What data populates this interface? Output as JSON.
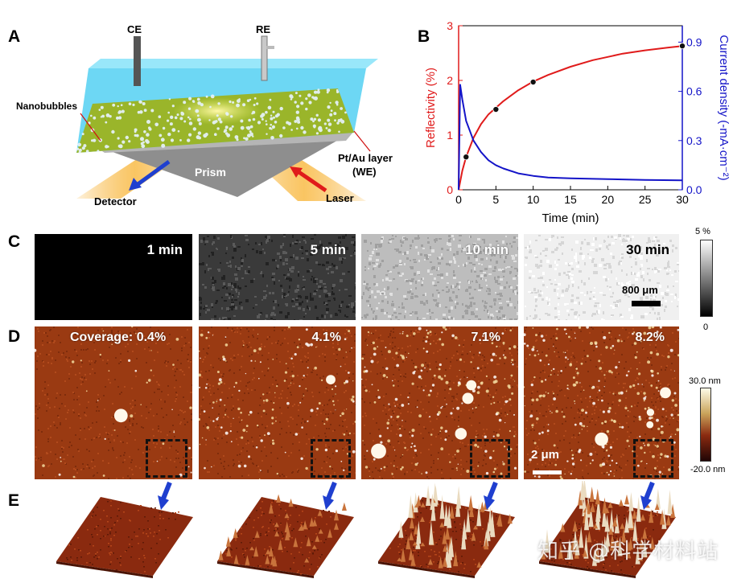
{
  "panel_labels": {
    "a": "A",
    "b": "B",
    "c": "C",
    "d": "D",
    "e": "E"
  },
  "schematic": {
    "ce": "CE",
    "re": "RE",
    "nanobubbles": "Nanobubbles",
    "ptau_line1": "Pt/Au layer",
    "ptau_line2": "(WE)",
    "prism": "Prism",
    "detector": "Detector",
    "laser": "Laser",
    "colors": {
      "water": "#5fd3f0",
      "layer": "#9fb52a",
      "prism": "#9a9a9a",
      "beam": "#f6b33a",
      "arrow_red": "#e01b1b",
      "arrow_blue": "#1f3fcf"
    }
  },
  "chart_data": {
    "type": "line",
    "xlabel": "Time (min)",
    "ylabel_left": "Reflectivity (%)",
    "ylabel_right": "Current density (-mA·cm⁻²)",
    "xlim": [
      0,
      30
    ],
    "ylim_left": [
      0,
      3
    ],
    "ylim_right": [
      0,
      1.0
    ],
    "x_ticks": [
      "0",
      "5",
      "10",
      "15",
      "20",
      "25",
      "30"
    ],
    "y_left_ticks": [
      "0",
      "1",
      "2",
      "3"
    ],
    "y_right_ticks": [
      "0.0",
      "0.3",
      "0.6",
      "0.9"
    ],
    "series": [
      {
        "axis": "left",
        "color": "#e01b1b",
        "x": [
          0,
          0.5,
          1,
          2,
          3,
          4,
          5,
          6,
          8,
          10,
          12,
          15,
          18,
          20,
          22,
          25,
          28,
          30
        ],
        "y": [
          0,
          0.35,
          0.6,
          0.95,
          1.2,
          1.38,
          1.5,
          1.62,
          1.82,
          1.98,
          2.1,
          2.25,
          2.37,
          2.43,
          2.49,
          2.55,
          2.6,
          2.63
        ]
      },
      {
        "axis": "right",
        "color": "#1414c8",
        "x": [
          0,
          0.2,
          0.5,
          1,
          2,
          3,
          4,
          5,
          6,
          8,
          10,
          12,
          15,
          20,
          25,
          30
        ],
        "y": [
          0.0,
          0.64,
          0.55,
          0.42,
          0.3,
          0.23,
          0.18,
          0.15,
          0.13,
          0.1,
          0.085,
          0.075,
          0.07,
          0.065,
          0.06,
          0.058
        ]
      }
    ],
    "markers": {
      "x": [
        1,
        5,
        10,
        30
      ],
      "y": [
        0.6,
        1.47,
        1.97,
        2.63
      ],
      "color": "#111"
    },
    "left_color": "#e01b1b",
    "right_color": "#1414c8"
  },
  "spr_images": {
    "labels": [
      "1 min",
      "5 min",
      "10 min",
      "30 min"
    ],
    "scale_bar": "800 μm",
    "colorbar_top": "5 %",
    "colorbar_bottom": "0",
    "fills": [
      "#000000",
      "#3a3a3a",
      "#bdbdbd",
      "#f0f0f0"
    ]
  },
  "afm_images": {
    "labels": [
      "Coverage: 0.4%",
      "4.1%",
      "7.1%",
      "8.2%"
    ],
    "scale_bar": "2 μm",
    "colorbar_top": "30.0 nm",
    "colorbar_bottom": "-20.0 nm",
    "base_color": "#9a3a12"
  },
  "watermark": "知乎 @科学材料站"
}
